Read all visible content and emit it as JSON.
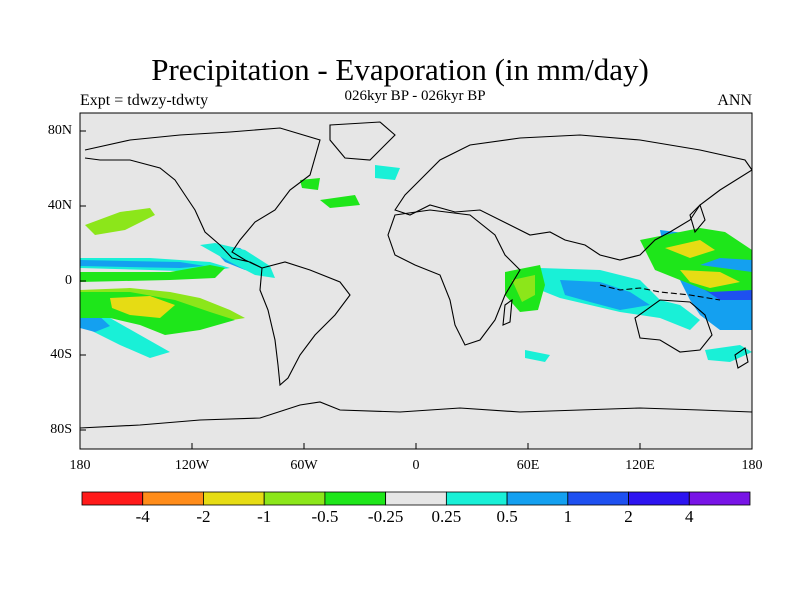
{
  "title": "Precipitation - Evaporation (in mm/day)",
  "subtitle": "026kyr BP - 026kyr BP",
  "left_label": "Expt = tdwzy-tdwty",
  "right_label": "ANN",
  "y_ticks": [
    "80N",
    "40N",
    "0",
    "40S",
    "80S"
  ],
  "x_ticks": [
    "180",
    "120W",
    "60W",
    "0",
    "60E",
    "120E",
    "180"
  ],
  "colorbar": {
    "labels": [
      "-4",
      "-2",
      "-1",
      "-0.5",
      "-0.25",
      "0.25",
      "0.5",
      "1",
      "2",
      "4"
    ],
    "colors": [
      "#ff1a1a",
      "#ff8c1a",
      "#e6dc14",
      "#8ce61a",
      "#1ee61a",
      "#e6e6e6",
      "#19f0d7",
      "#14a0f0",
      "#1e50f0",
      "#2d14f0",
      "#7814e6"
    ]
  },
  "colors": {
    "land_ocean": "#e6e6e6",
    "coast": "#000000"
  }
}
